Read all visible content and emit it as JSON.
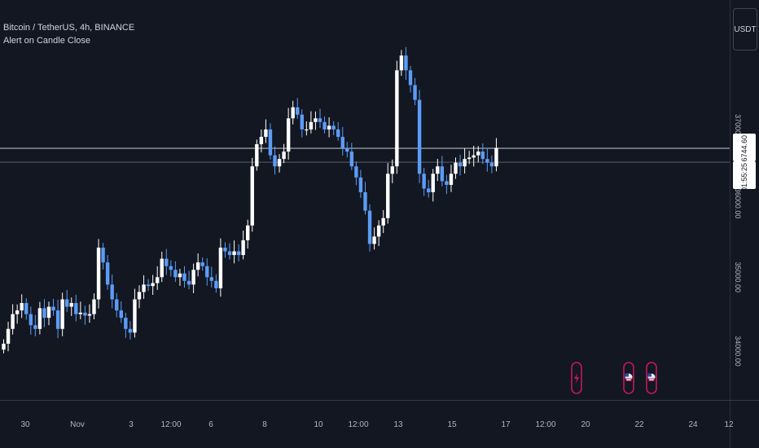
{
  "legend": {
    "symbol_line": "Bitcoin / TetherUS, 4h, BINANCE",
    "indicator": "Alert on Candle Close"
  },
  "currency_button": "USDT",
  "price_tag": {
    "price": "36744.60",
    "countdown": "01:55:25"
  },
  "colors": {
    "background": "#131722",
    "up": "#ffffff",
    "down": "#5b9cf6",
    "event_ring": "#c2185b"
  },
  "event_markers": [
    {
      "x": "2023-11-19 16:00",
      "icon": "lightning-icon"
    },
    {
      "x": "2023-11-21 16:00",
      "icon": "us-flag-icon"
    },
    {
      "x": "2023-11-22 16:00",
      "icon": "us-flag-icon"
    }
  ],
  "chart_data": {
    "type": "candlestick",
    "title": "Bitcoin / TetherUS, 4h, BINANCE",
    "xlabel": "",
    "ylabel": "",
    "x_ticks": [
      "30",
      "Nov",
      "3",
      "12:00",
      "6",
      "8",
      "10",
      "12:00",
      "13",
      "15",
      "17",
      "12:00",
      "20",
      "22",
      "24",
      "12"
    ],
    "y_ticks": [
      "34000.00",
      "35000.00",
      "36000.00",
      "37000.00"
    ],
    "ylim": [
      33450,
      38600
    ],
    "current_price": 36744.6,
    "timeframe": "4h",
    "series": [
      {
        "name": "BTCUSDT",
        "first_candle": "2023-10-29 12:00",
        "interval_hours": 4,
        "closes": [
          34100,
          34300,
          34500,
          34550,
          34650,
          34500,
          34350,
          34300,
          34580,
          34450,
          34600,
          34550,
          34300,
          34700,
          34600,
          34650,
          34500,
          34520,
          34480,
          34500,
          34700,
          35400,
          35200,
          34900,
          34700,
          34550,
          34450,
          34300,
          34250,
          34700,
          34800,
          34900,
          34880,
          34920,
          35000,
          35250,
          35150,
          35100,
          35000,
          35050,
          34950,
          34900,
          35100,
          35200,
          35150,
          35000,
          34950,
          34850,
          35400,
          35350,
          35300,
          35350,
          35300,
          35500,
          35700,
          36500,
          36800,
          36900,
          37000,
          36650,
          36500,
          36600,
          36700,
          37150,
          37300,
          37200,
          37000,
          37000,
          37100,
          37150,
          37100,
          37000,
          37050,
          37000,
          36900,
          36750,
          36700,
          36500,
          36350,
          36150,
          35900,
          35450,
          35550,
          35700,
          35800,
          36400,
          36500,
          37800,
          38000,
          37800,
          37600,
          37400,
          36400,
          36200,
          36150,
          36400,
          36500,
          36300,
          36250,
          36400,
          36550,
          36500,
          36600,
          36620,
          36650,
          36700,
          36600,
          36550,
          36500,
          36750
        ]
      }
    ]
  }
}
